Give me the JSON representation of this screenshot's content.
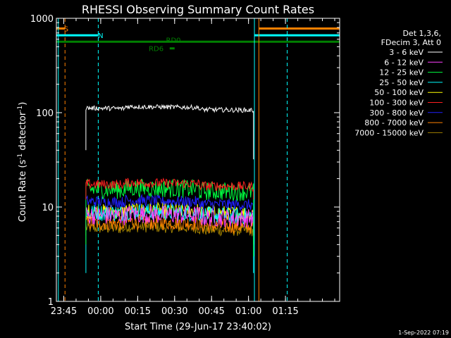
{
  "chart_data": {
    "type": "line",
    "title": "RHESSI Observing Summary Count Rates",
    "xlabel": "Start Time (29-Jun-17 23:40:02)",
    "ylabel_main": "Count Rate (s",
    "ylabel_sup1": "-1",
    "ylabel_mid": " detector",
    "ylabel_sup2": "-1",
    "ylabel_end": ")",
    "y_scale": "log",
    "ylim": [
      1,
      1000
    ],
    "xlim_minutes": [
      -18,
      97
    ],
    "y_ticks": [
      {
        "value": 1,
        "label": "1"
      },
      {
        "value": 10,
        "label": "10"
      },
      {
        "value": 100,
        "label": "100"
      },
      {
        "value": 1000,
        "label": "1000"
      }
    ],
    "x_ticks": [
      {
        "minutes": -15,
        "label": "23:45"
      },
      {
        "minutes": 0,
        "label": "00:00"
      },
      {
        "minutes": 15,
        "label": "00:15"
      },
      {
        "minutes": 30,
        "label": "00:30"
      },
      {
        "minutes": 45,
        "label": "00:45"
      },
      {
        "minutes": 60,
        "label": "01:00"
      },
      {
        "minutes": 75,
        "label": "01:15"
      }
    ],
    "legend": {
      "header": [
        "Det 1,3,6,",
        "FDecim 3, Att 0"
      ],
      "placement": "right"
    },
    "series": [
      {
        "name": "3 - 6 keV",
        "color": "#ffffff",
        "level_start": 112,
        "level_end": 106,
        "noise": 0.025,
        "drop_start": 40,
        "drop_end": 32
      },
      {
        "name": "6 - 12 keV",
        "color": "#ff40ff",
        "level_start": 8.2,
        "level_end": 7.6,
        "noise": 0.1,
        "drop_start": 6,
        "drop_end": 5
      },
      {
        "name": "12 - 25 keV",
        "color": "#00ff40",
        "level_start": 15.5,
        "level_end": 14.5,
        "noise": 0.1,
        "drop_start": 4,
        "drop_end": 3
      },
      {
        "name": "25 - 50 keV",
        "color": "#00ffff",
        "level_start": 8.8,
        "level_end": 8.0,
        "noise": 0.09,
        "drop_start": 2,
        "drop_end": 2
      },
      {
        "name": "50 - 100 keV",
        "color": "#ffff00",
        "level_start": 9.0,
        "level_end": 8.6,
        "noise": 0.08,
        "drop_start": 6,
        "drop_end": 6
      },
      {
        "name": "100 - 300 keV",
        "color": "#ff2020",
        "level_start": 17.5,
        "level_end": 16.5,
        "noise": 0.05,
        "drop_start": 12,
        "drop_end": 12
      },
      {
        "name": "300 - 800 keV",
        "color": "#2020ff",
        "level_start": 11.5,
        "level_end": 10.5,
        "noise": 0.06,
        "drop_start": 8,
        "drop_end": 8
      },
      {
        "name": "800 - 7000 keV",
        "color": "#ff8000",
        "level_start": 6.8,
        "level_end": 6.2,
        "noise": 0.08,
        "drop_start": 5,
        "drop_end": 5
      },
      {
        "name": "7000 - 15000 keV",
        "color": "#a08000",
        "level_start": 6.0,
        "level_end": 5.6,
        "noise": 0.06,
        "drop_start": 4,
        "drop_end": 4
      }
    ],
    "data_span_minutes": [
      -6,
      62
    ],
    "vertical_lines": [
      {
        "minutes": -17.2,
        "color": "#00ffff",
        "style": "solid"
      },
      {
        "minutes": -14.5,
        "color": "#ff8000",
        "style": "dashed"
      },
      {
        "minutes": -1,
        "color": "#00ffff",
        "style": "dashed"
      },
      {
        "minutes": 62.4,
        "color": "#00ffff",
        "style": "solid"
      },
      {
        "minutes": 64.2,
        "color": "#ff8000",
        "style": "solid"
      },
      {
        "minutes": 75.7,
        "color": "#00ffff",
        "style": "dashed"
      }
    ],
    "flag_bars": [
      {
        "label": "S",
        "color": "#ff8000",
        "value": 780,
        "start": -18,
        "end": -14.5,
        "label_at": -14
      },
      {
        "label": "S",
        "color": "#ff8000",
        "value": 780,
        "start": 64.2,
        "end": 97
      },
      {
        "label": "N",
        "color": "#00ffff",
        "value": 660,
        "start": -18,
        "end": -1,
        "label_at": 0
      },
      {
        "label": "N",
        "color": "#00ffff",
        "value": 660,
        "start": 62.4,
        "end": 97
      },
      {
        "label": "RD0",
        "color": "#008000",
        "value": 565,
        "start": -18,
        "end": 97,
        "label_at": 29.5,
        "label_value": 590
      },
      {
        "label": "RD6",
        "color": "#008000",
        "value": 480,
        "start": 28,
        "end": 30,
        "label_at": 22.5,
        "label_value": 480
      }
    ]
  },
  "footer": {
    "date": "1-Sep-2022 07:19"
  }
}
